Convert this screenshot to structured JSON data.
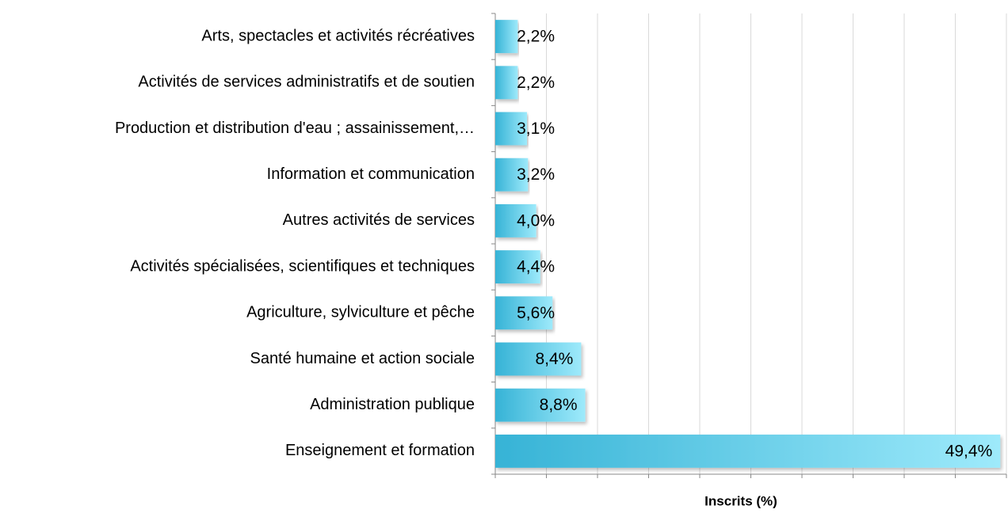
{
  "chart_data": {
    "type": "bar",
    "orientation": "horizontal",
    "x_label": "Inscrits (%)",
    "categories": [
      "Arts, spectacles et activités récréatives",
      "Activités de services administratifs et de soutien",
      "Production et distribution d'eau ; assainissement,…",
      "Information et communication",
      "Autres activités de services",
      "Activités spécialisées, scientifiques et techniques",
      "Agriculture, sylviculture et pêche",
      "Santé humaine et action sociale",
      "Administration publique",
      "Enseignement et formation"
    ],
    "values": [
      2.2,
      2.2,
      3.1,
      3.2,
      4.0,
      4.4,
      5.6,
      8.4,
      8.8,
      49.4
    ],
    "value_labels": [
      "2,2%",
      "2,2%",
      "3,1%",
      "3,2%",
      "4,0%",
      "4,4%",
      "5,6%",
      "8,4%",
      "8,8%",
      "49,4%"
    ],
    "color": [
      "#36b3d6",
      "#9eeafb"
    ],
    "xlim": [
      0,
      50
    ],
    "xticks": [
      0,
      5,
      10,
      15,
      20,
      25,
      30,
      35,
      40,
      45,
      50
    ],
    "grid": true
  }
}
